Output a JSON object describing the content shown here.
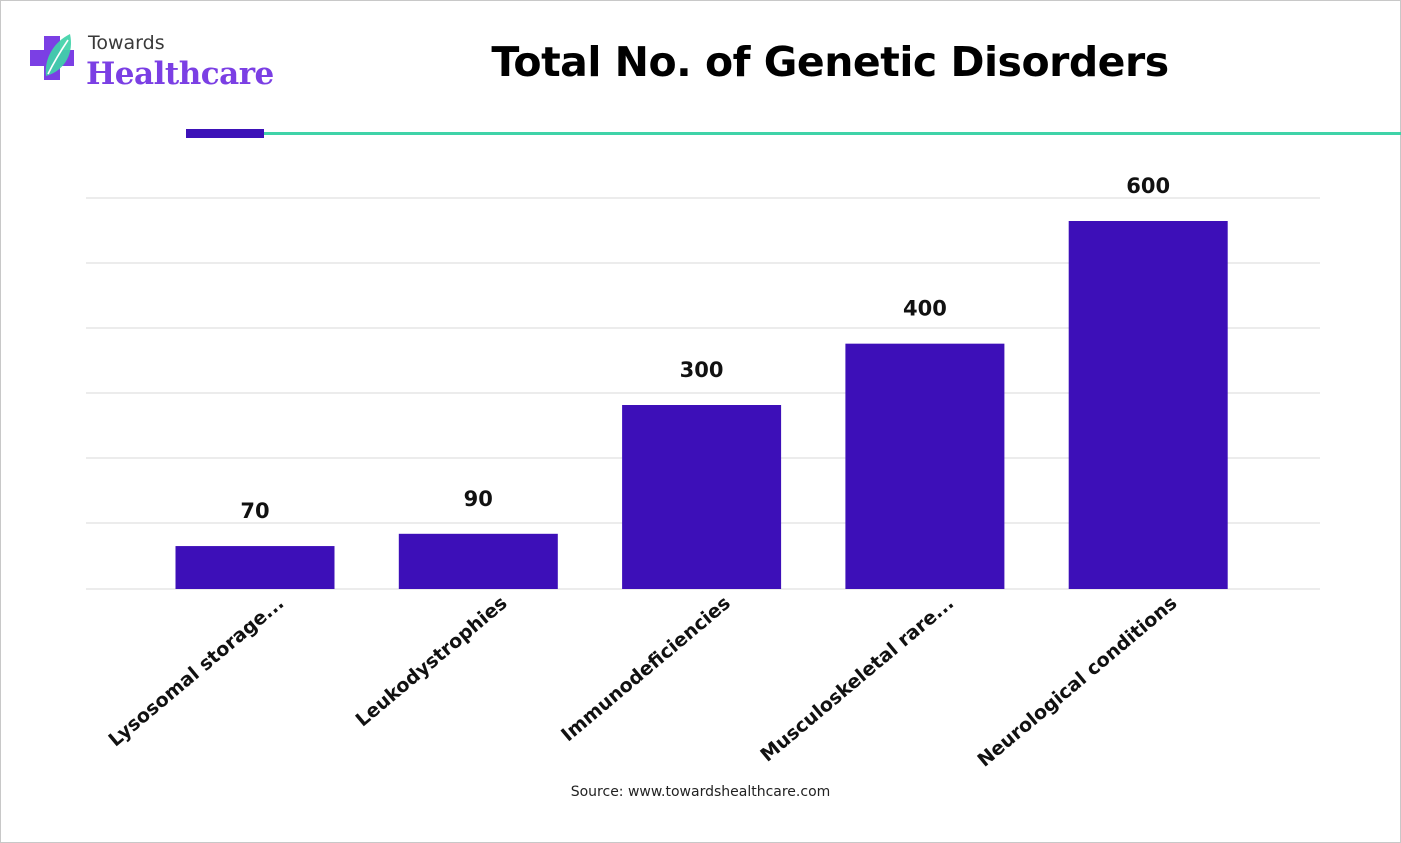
{
  "brand": {
    "word_1": "Towards",
    "word_2": "Healthcare",
    "icon": "medical-cross-leaf-icon",
    "colors": {
      "purple": "#7b3fe4",
      "teal": "#3fd3a8",
      "dark": "#3a3a3a"
    }
  },
  "chart_data": {
    "type": "bar",
    "title": "Total No. of Genetic Disorders",
    "categories": [
      "Lysosomal storage...",
      "Leukodystrophies",
      "Immunodeficiencies",
      "Musculoskeletal rare...",
      "Neurological conditions"
    ],
    "values": [
      70,
      90,
      300,
      400,
      600
    ],
    "data_labels": [
      "70",
      "90",
      "300",
      "400",
      "600"
    ],
    "ylim": [
      0,
      600
    ],
    "grid": true,
    "xlabel": "",
    "ylabel": "",
    "bar_color": "#3d0fb8"
  },
  "footer": {
    "source": "Source: www.towardshealthcare.com"
  },
  "decor": {
    "accent_purple": "#3d12b8",
    "accent_green": "#3fd3a8"
  }
}
